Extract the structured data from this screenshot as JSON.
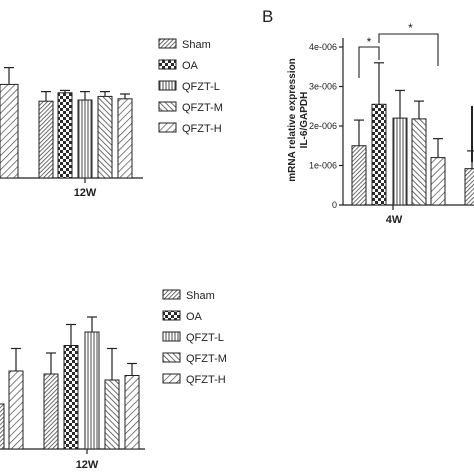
{
  "panel_b_label": "B",
  "chart_data": [
    {
      "id": "top-left",
      "type": "bar",
      "ylabel": "",
      "ylim": [
        0,
        1
      ],
      "axis_ticks": [],
      "groups": [
        {
          "label": "12W",
          "values": [
            0.78,
            0.64,
            0.71,
            0.65,
            0.68,
            0.66
          ],
          "errors": [
            0.14,
            0.08,
            0.02,
            0.07,
            0.04,
            0.04
          ]
        }
      ],
      "partial_left_bar": {
        "value": 0.78,
        "error": 0.14
      },
      "series": [
        {
          "name": "Sham",
          "pattern": "diag-dense"
        },
        {
          "name": "OA",
          "pattern": "checker"
        },
        {
          "name": "QFZT-L",
          "pattern": "vlines"
        },
        {
          "name": "QFZT-M",
          "pattern": "diag-wide"
        },
        {
          "name": "QFZT-H",
          "pattern": "diag-mid"
        }
      ],
      "legend_position": "right"
    },
    {
      "id": "top-right",
      "type": "bar",
      "ylabel": "mRNA relative expression\nIL-6/GAPDH",
      "ylim": [
        0,
        5e-06
      ],
      "yticks": [
        "0",
        "1e-006",
        "2e-006",
        "3e-006",
        "4e-006"
      ],
      "ytick_values": [
        0,
        1e-06,
        2e-06,
        3e-06,
        4e-06
      ],
      "groups": [
        {
          "label": "4W",
          "values": [
            1.5e-06,
            2.55e-06,
            2.2e-06,
            2.18e-06,
            1.2e-06
          ],
          "errors": [
            6.5e-07,
            1.05e-06,
            7e-07,
            4.5e-07,
            4.8e-07
          ]
        }
      ],
      "partial_right_bar": {
        "value": 9.2e-07,
        "error": 4.5e-07
      },
      "significance": [
        {
          "from": 0,
          "to": 1,
          "label": "*"
        },
        {
          "from": 1,
          "to": 4,
          "label": "*"
        }
      ]
    },
    {
      "id": "bottom-left",
      "type": "bar",
      "ylabel": "",
      "ylim": [
        0,
        1
      ],
      "groups": [
        {
          "label": "12W",
          "values": [
            0.29,
            0.5,
            0.69,
            0.78,
            0.46,
            0.49
          ],
          "errors": [
            0.07,
            0.14,
            0.14,
            0.1,
            0.21,
            0.08
          ]
        }
      ],
      "partial_left_bars": [
        {
          "value": 0.3,
          "error": 0
        },
        {
          "value": 0.52,
          "error": 0.15
        }
      ],
      "series": [
        {
          "name": "Sham",
          "pattern": "diag-dense"
        },
        {
          "name": "OA",
          "pattern": "checker"
        },
        {
          "name": "QFZT-L",
          "pattern": "vlines"
        },
        {
          "name": "QFZT-M",
          "pattern": "diag-wide"
        },
        {
          "name": "QFZT-H",
          "pattern": "diag-mid"
        }
      ],
      "legend_position": "right"
    }
  ],
  "colors": {
    "axis": "#222222",
    "pattern": "#555555",
    "check_dark": "#2b2b2b"
  }
}
